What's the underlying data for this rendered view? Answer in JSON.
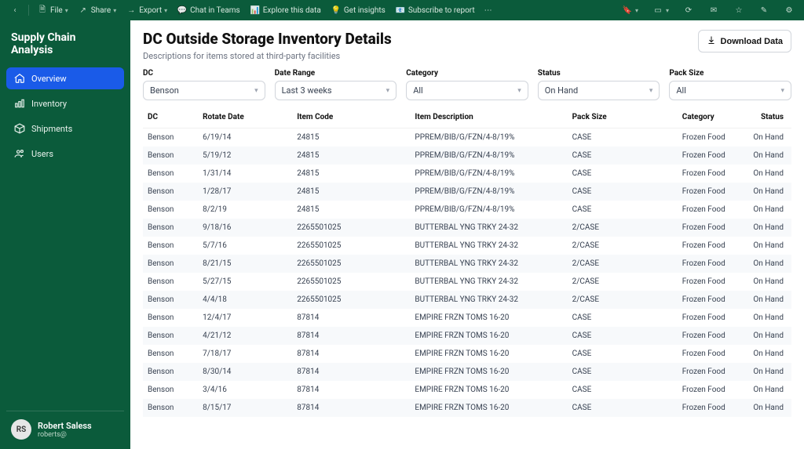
{
  "theme": {
    "sidebar_bg": "#0b5b3b",
    "topbar_bg": "#0b5b3b",
    "active_nav_bg": "#1a5be8",
    "text_muted": "#6b7280",
    "row_alt_bg": "#f7f9fb",
    "border": "#d1d5db"
  },
  "topbar": {
    "file": "File",
    "share": "Share",
    "export": "Export",
    "chat": "Chat in Teams",
    "explore": "Explore this data",
    "insights": "Get insights",
    "subscribe": "Subscribe to report",
    "more": "⋯"
  },
  "sidebar": {
    "brand": "Supply Chain Analysis",
    "items": [
      {
        "label": "Overview"
      },
      {
        "label": "Inventory"
      },
      {
        "label": "Shipments"
      },
      {
        "label": "Users"
      }
    ]
  },
  "user": {
    "initials": "RS",
    "name": "Robert Saless",
    "sub": "roberts@"
  },
  "header": {
    "title": "DC Outside Storage Inventory Details",
    "subtitle": "Descriptions for items stored at third-party facilities",
    "download": "Download Data"
  },
  "filters": {
    "dc": {
      "label": "DC",
      "value": "Benson"
    },
    "date": {
      "label": "Date Range",
      "value": "Last 3 weeks"
    },
    "category": {
      "label": "Category",
      "value": "All"
    },
    "status": {
      "label": "Status",
      "value": "On Hand"
    },
    "pack": {
      "label": "Pack Size",
      "value": "All"
    }
  },
  "table": {
    "columns": [
      "DC",
      "Rotate Date",
      "Item Code",
      "Item Description",
      "Pack Size",
      "Category",
      "Status"
    ],
    "rows": [
      [
        "Benson",
        "6/19/14",
        "24815",
        "PPREM/BIB/G/FZN/4-8/19%",
        "CASE",
        "Frozen Food",
        "On Hand"
      ],
      [
        "Benson",
        "5/19/12",
        "24815",
        "PPREM/BIB/G/FZN/4-8/19%",
        "CASE",
        "Frozen Food",
        "On Hand"
      ],
      [
        "Benson",
        "1/31/14",
        "24815",
        "PPREM/BIB/G/FZN/4-8/19%",
        "CASE",
        "Frozen Food",
        "On Hand"
      ],
      [
        "Benson",
        "1/28/17",
        "24815",
        "PPREM/BIB/G/FZN/4-8/19%",
        "CASE",
        "Frozen Food",
        "On Hand"
      ],
      [
        "Benson",
        "8/2/19",
        "24815",
        "PPREM/BIB/G/FZN/4-8/19%",
        "CASE",
        "Frozen Food",
        "On Hand"
      ],
      [
        "Benson",
        "9/18/16",
        "2265501025",
        "BUTTERBAL YNG TRKY 24-32",
        "2/CASE",
        "Frozen Food",
        "On Hand"
      ],
      [
        "Benson",
        "5/7/16",
        "2265501025",
        "BUTTERBAL YNG TRKY 24-32",
        "2/CASE",
        "Frozen Food",
        "On Hand"
      ],
      [
        "Benson",
        "8/21/15",
        "2265501025",
        "BUTTERBAL YNG TRKY 24-32",
        "2/CASE",
        "Frozen Food",
        "On Hand"
      ],
      [
        "Benson",
        "5/27/15",
        "2265501025",
        "BUTTERBAL YNG TRKY 24-32",
        "2/CASE",
        "Frozen Food",
        "On Hand"
      ],
      [
        "Benson",
        "4/4/18",
        "2265501025",
        "BUTTERBAL YNG TRKY 24-32",
        "2/CASE",
        "Frozen Food",
        "On Hand"
      ],
      [
        "Benson",
        "12/4/17",
        "87814",
        "EMPIRE FRZN TOMS 16-20",
        "CASE",
        "Frozen Food",
        "On Hand"
      ],
      [
        "Benson",
        "4/21/12",
        "87814",
        "EMPIRE FRZN TOMS 16-20",
        "CASE",
        "Frozen Food",
        "On Hand"
      ],
      [
        "Benson",
        "7/18/17",
        "87814",
        "EMPIRE FRZN TOMS 16-20",
        "CASE",
        "Frozen Food",
        "On Hand"
      ],
      [
        "Benson",
        "8/30/14",
        "87814",
        "EMPIRE FRZN TOMS 16-20",
        "CASE",
        "Frozen Food",
        "On Hand"
      ],
      [
        "Benson",
        "3/4/16",
        "87814",
        "EMPIRE FRZN TOMS 16-20",
        "CASE",
        "Frozen Food",
        "On Hand"
      ],
      [
        "Benson",
        "8/15/17",
        "87814",
        "EMPIRE FRZN TOMS 16-20",
        "CASE",
        "Frozen Food",
        "On Hand"
      ]
    ]
  }
}
